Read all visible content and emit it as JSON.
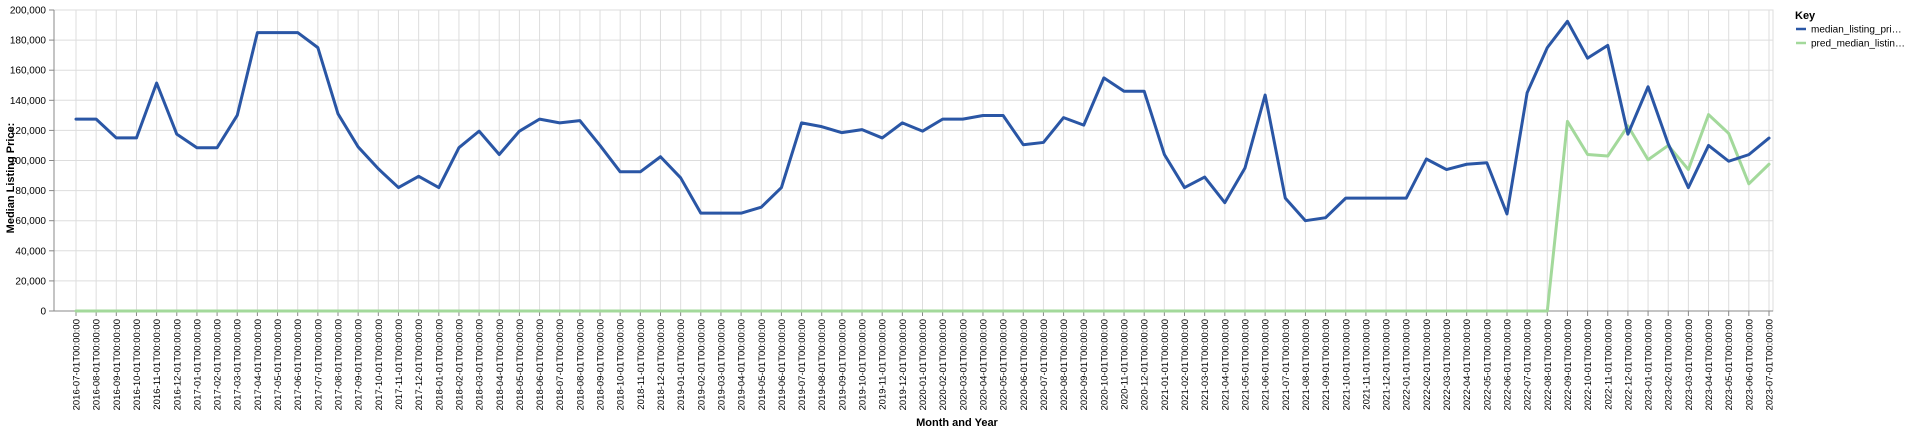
{
  "chart_data": {
    "type": "line",
    "title": "",
    "xlabel": "Month and Year",
    "ylabel": "Median Listing Price:",
    "ylim": [
      0,
      200000
    ],
    "yticks": [
      "0",
      "20,000",
      "40,000",
      "60,000",
      "80,000",
      "100,000",
      "120,000",
      "140,000",
      "160,000",
      "180,000",
      "200,000"
    ],
    "grid": true,
    "legend": {
      "title": "Key",
      "placement": "top-right",
      "entries": [
        "median_listing_pri…",
        "pred_median_listin…"
      ]
    },
    "x": [
      "2016-07-01T00:00:00",
      "2016-08-01T00:00:00",
      "2016-09-01T00:00:00",
      "2016-10-01T00:00:00",
      "2016-11-01T00:00:00",
      "2016-12-01T00:00:00",
      "2017-01-01T00:00:00",
      "2017-02-01T00:00:00",
      "2017-03-01T00:00:00",
      "2017-04-01T00:00:00",
      "2017-05-01T00:00:00",
      "2017-06-01T00:00:00",
      "2017-07-01T00:00:00",
      "2017-08-01T00:00:00",
      "2017-09-01T00:00:00",
      "2017-10-01T00:00:00",
      "2017-11-01T00:00:00",
      "2017-12-01T00:00:00",
      "2018-01-01T00:00:00",
      "2018-02-01T00:00:00",
      "2018-03-01T00:00:00",
      "2018-04-01T00:00:00",
      "2018-05-01T00:00:00",
      "2018-06-01T00:00:00",
      "2018-07-01T00:00:00",
      "2018-08-01T00:00:00",
      "2018-09-01T00:00:00",
      "2018-10-01T00:00:00",
      "2018-11-01T00:00:00",
      "2018-12-01T00:00:00",
      "2019-01-01T00:00:00",
      "2019-02-01T00:00:00",
      "2019-03-01T00:00:00",
      "2019-04-01T00:00:00",
      "2019-05-01T00:00:00",
      "2019-06-01T00:00:00",
      "2019-07-01T00:00:00",
      "2019-08-01T00:00:00",
      "2019-09-01T00:00:00",
      "2019-10-01T00:00:00",
      "2019-11-01T00:00:00",
      "2019-12-01T00:00:00",
      "2020-01-01T00:00:00",
      "2020-02-01T00:00:00",
      "2020-03-01T00:00:00",
      "2020-04-01T00:00:00",
      "2020-05-01T00:00:00",
      "2020-06-01T00:00:00",
      "2020-07-01T00:00:00",
      "2020-08-01T00:00:00",
      "2020-09-01T00:00:00",
      "2020-10-01T00:00:00",
      "2020-11-01T00:00:00",
      "2020-12-01T00:00:00",
      "2021-01-01T00:00:00",
      "2021-02-01T00:00:00",
      "2021-03-01T00:00:00",
      "2021-04-01T00:00:00",
      "2021-05-01T00:00:00",
      "2021-06-01T00:00:00",
      "2021-07-01T00:00:00",
      "2021-08-01T00:00:00",
      "2021-09-01T00:00:00",
      "2021-10-01T00:00:00",
      "2021-11-01T00:00:00",
      "2021-12-01T00:00:00",
      "2022-01-01T00:00:00",
      "2022-02-01T00:00:00",
      "2022-03-01T00:00:00",
      "2022-04-01T00:00:00",
      "2022-05-01T00:00:00",
      "2022-06-01T00:00:00",
      "2022-07-01T00:00:00",
      "2022-08-01T00:00:00",
      "2022-09-01T00:00:00",
      "2022-10-01T00:00:00",
      "2022-11-01T00:00:00",
      "2022-12-01T00:00:00",
      "2023-01-01T00:00:00",
      "2023-02-01T00:00:00",
      "2023-03-01T00:00:00",
      "2023-04-01T00:00:00",
      "2023-05-01T00:00:00",
      "2023-06-01T00:00:00",
      "2023-07-01T00:00:00"
    ],
    "series": [
      {
        "name": "median_listing_pri…",
        "color": "#2a56a5",
        "values": [
          127500,
          127500,
          115000,
          115000,
          151500,
          117500,
          108500,
          108500,
          130000,
          185000,
          185000,
          185000,
          175000,
          131000,
          109000,
          94500,
          82000,
          89500,
          82000,
          108500,
          119500,
          104000,
          119500,
          127500,
          125000,
          126500,
          110000,
          92500,
          92500,
          102500,
          88500,
          65000,
          65000,
          65000,
          69000,
          82000,
          125000,
          122500,
          118500,
          120500,
          115000,
          125000,
          119500,
          127500,
          127500,
          129900,
          129900,
          110500,
          112000,
          128500,
          123500,
          154900,
          146000,
          146000,
          104000,
          82000,
          89000,
          72000,
          95000,
          143500,
          75000,
          60000,
          62000,
          75000,
          75000,
          75000,
          75000,
          101000,
          94000,
          97500,
          98500,
          64500,
          145000,
          175000,
          192500,
          168000,
          176500,
          117500,
          149000,
          111000,
          82000,
          110000,
          99500,
          103900,
          114900
        ]
      },
      {
        "name": "pred_median_listin…",
        "color": "#a3d99b",
        "values": [
          0,
          0,
          0,
          0,
          0,
          0,
          0,
          0,
          0,
          0,
          0,
          0,
          0,
          0,
          0,
          0,
          0,
          0,
          0,
          0,
          0,
          0,
          0,
          0,
          0,
          0,
          0,
          0,
          0,
          0,
          0,
          0,
          0,
          0,
          0,
          0,
          0,
          0,
          0,
          0,
          0,
          0,
          0,
          0,
          0,
          0,
          0,
          0,
          0,
          0,
          0,
          0,
          0,
          0,
          0,
          0,
          0,
          0,
          0,
          0,
          0,
          0,
          0,
          0,
          0,
          0,
          0,
          0,
          0,
          0,
          0,
          0,
          0,
          0,
          126000,
          104000,
          103000,
          123000,
          100500,
          110000,
          94000,
          130500,
          118000,
          84500,
          97500
        ]
      }
    ]
  }
}
